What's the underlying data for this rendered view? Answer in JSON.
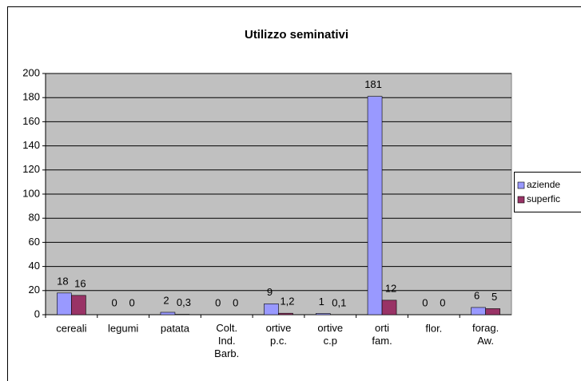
{
  "chart_data": {
    "type": "bar",
    "title": "Utilizzo seminativi",
    "categories": [
      "cereali",
      "legumi",
      "patata",
      "Colt. Ind. Barb.",
      "ortive p.c.",
      "ortive c.p",
      "orti fam.",
      "flor.",
      "forag. Aw."
    ],
    "series": [
      {
        "name": "aziende",
        "color": "#9999ff",
        "values": [
          18,
          0,
          2,
          0,
          9,
          1,
          181,
          0,
          6
        ]
      },
      {
        "name": "superfic",
        "color": "#993366",
        "values": [
          16,
          0,
          0.3,
          0,
          1.2,
          0.1,
          12,
          0,
          5
        ],
        "value_labels": [
          "16",
          "0",
          "0,3",
          "0",
          "1,2",
          "0,1",
          "12",
          "0",
          "5"
        ]
      }
    ],
    "ylim": [
      0,
      200
    ],
    "yticks": [
      0,
      20,
      40,
      60,
      80,
      100,
      120,
      140,
      160,
      180,
      200
    ],
    "grid": true,
    "legend": "right"
  }
}
